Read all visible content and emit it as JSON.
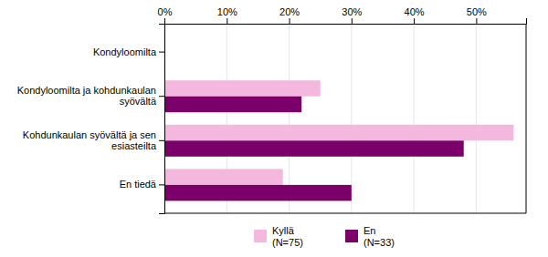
{
  "chart_data": {
    "type": "bar",
    "orientation": "horizontal",
    "categories": [
      "En tiedä",
      "Kohdunkaulan syövältä ja sen\nesiasteilta",
      "Kondyloomilta ja kohdunkaulan\nsyövältä",
      "Kondyloomilta"
    ],
    "series": [
      {
        "name": "Kyllä\n(N=75)",
        "color": "#f4b8df",
        "values": [
          19,
          56,
          25,
          0
        ]
      },
      {
        "name": "En\n(N=33)",
        "color": "#7b006a",
        "values": [
          30,
          48,
          22,
          0
        ]
      }
    ],
    "xlim": [
      0,
      58
    ],
    "xticks": [
      {
        "value": 0,
        "label": "0%"
      },
      {
        "value": 10,
        "label": "10%"
      },
      {
        "value": 20,
        "label": "20%"
      },
      {
        "value": 30,
        "label": "30%"
      },
      {
        "value": 40,
        "label": "40%"
      },
      {
        "value": 50,
        "label": "50%"
      }
    ],
    "grid": true,
    "legend": "bottom"
  }
}
